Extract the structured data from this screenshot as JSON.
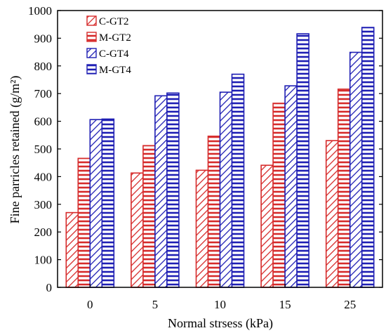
{
  "chart_data": {
    "type": "bar",
    "title": "",
    "xlabel": "Normal strsess (kPa)",
    "ylabel": "Fine parricles retained  (g/m²)",
    "categories": [
      "0",
      "5",
      "10",
      "15",
      "25"
    ],
    "ylim": [
      0,
      1000
    ],
    "yticks": [
      0,
      100,
      200,
      300,
      400,
      500,
      600,
      700,
      800,
      900,
      1000
    ],
    "grid": false,
    "legend_position": "top-left",
    "series": [
      {
        "name": "C-GT2",
        "color": "#d62b2b",
        "pattern": "diagonal",
        "values": [
          270,
          413,
          423,
          441,
          530
        ]
      },
      {
        "name": "M-GT2",
        "color": "#d62b2b",
        "pattern": "horizontal",
        "values": [
          466,
          512,
          546,
          665,
          716
        ]
      },
      {
        "name": "C-GT4",
        "color": "#1f1fb4",
        "pattern": "diagonal",
        "values": [
          606,
          692,
          705,
          728,
          849
        ]
      },
      {
        "name": "M-GT4",
        "color": "#1f1fb4",
        "pattern": "horizontal",
        "values": [
          608,
          702,
          770,
          916,
          939
        ]
      }
    ]
  }
}
